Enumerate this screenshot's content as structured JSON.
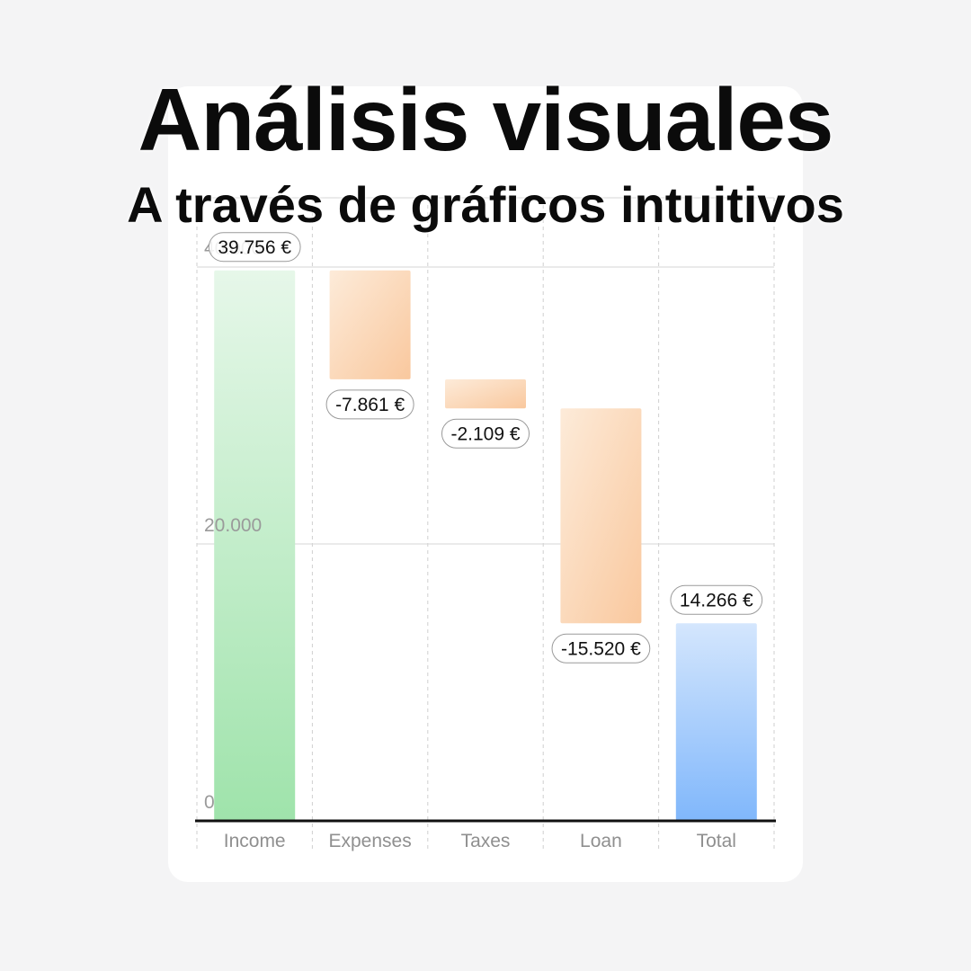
{
  "header": {
    "title": "Análisis visuales",
    "subtitle": "A través de gráficos intuitivos"
  },
  "chart_data": {
    "type": "bar",
    "subtype": "waterfall",
    "categories": [
      "Income",
      "Expenses",
      "Taxes",
      "Loan",
      "Total"
    ],
    "values": [
      39756,
      -7861,
      -2109,
      -15520,
      14266
    ],
    "value_labels": [
      "39.756 €",
      "-7.861 €",
      "-2.109 €",
      "-15.520 €",
      "14.266 €"
    ],
    "bar_kinds": [
      "income",
      "expense",
      "expense",
      "expense",
      "total"
    ],
    "y_ticks": [
      0,
      20000,
      40000
    ],
    "y_tick_labels": [
      "0",
      "20.000",
      "40.000"
    ],
    "ylim": [
      0,
      40000
    ],
    "grid": true,
    "colors": {
      "income_top": "#e6f7e9",
      "income_bottom": "#9fe3ab",
      "expense_light": "#fdebd9",
      "expense_dark": "#f9c89e",
      "total_top": "#d4e6fd",
      "total_bottom": "#80b7fb",
      "axis": "#111111",
      "grid": "#d6d6d6"
    }
  }
}
